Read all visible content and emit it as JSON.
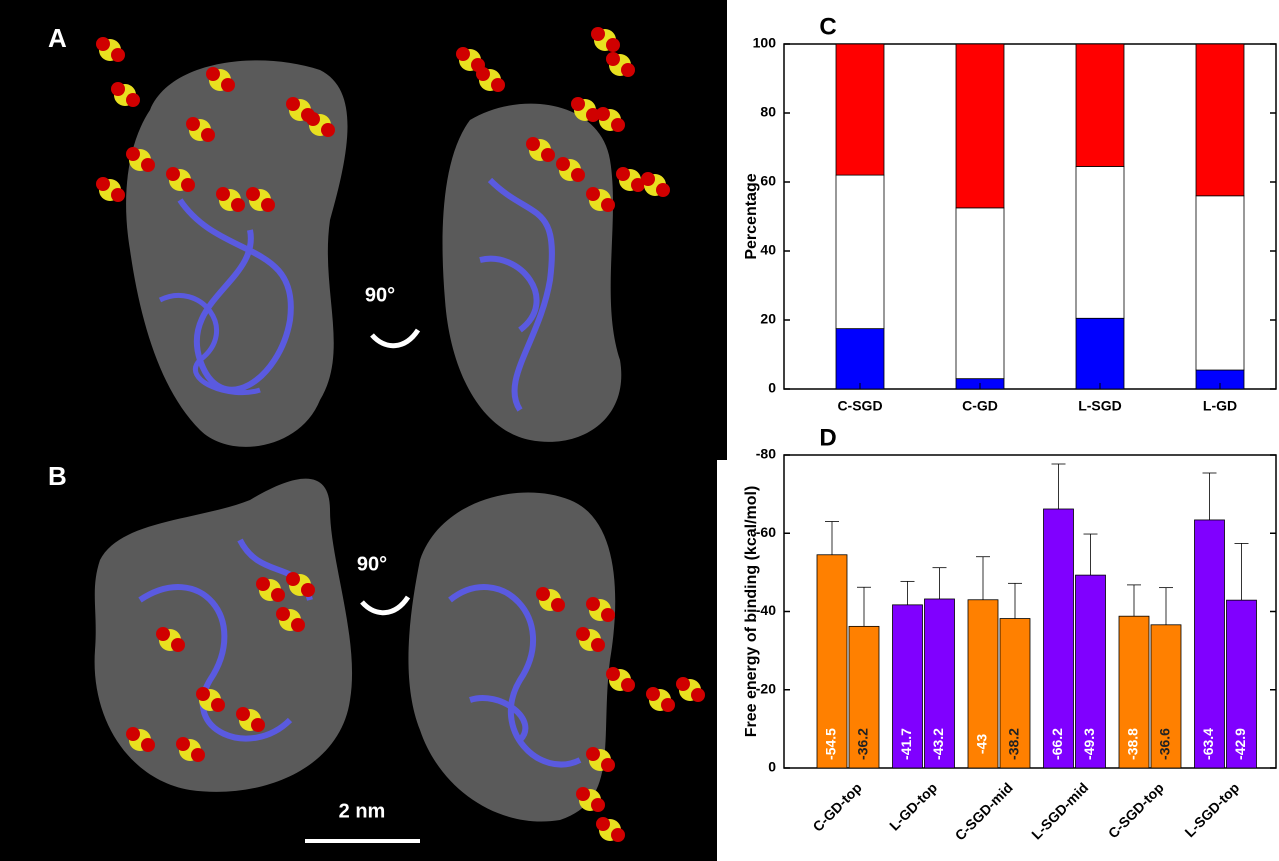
{
  "panel_a": {
    "label": "A",
    "rotation": "90°"
  },
  "panel_b": {
    "label": "B",
    "rotation": "90°",
    "scale_bar": "2 nm"
  },
  "chart_data": [
    {
      "type": "stacked_bar",
      "panel_label": "C",
      "ylabel": "Percentage",
      "categories": [
        "C-SGD",
        "C-GD",
        "L-SGD",
        "L-GD"
      ],
      "series": [
        {
          "color": "#0000ff",
          "values": [
            17.5,
            3,
            20.5,
            5.5
          ]
        },
        {
          "color": "#ffffff",
          "values": [
            44.5,
            49.5,
            44,
            50.5
          ]
        },
        {
          "color": "#ff0000",
          "values": [
            38,
            47.5,
            35.5,
            44
          ]
        }
      ],
      "ylim": [
        0,
        100
      ],
      "yticks": [
        0,
        20,
        40,
        60,
        80,
        100
      ]
    },
    {
      "type": "grouped_bar",
      "panel_label": "D",
      "ylabel": "Free energy of binding (kcal/mol)",
      "categories": [
        "C-GD-top",
        "L-GD-top",
        "C-SGD-mid",
        "L-SGD-mid",
        "C-SGD-top",
        "L-SGD-top"
      ],
      "colors": [
        "#ff8000",
        "#8000ff",
        "#ff8000",
        "#8000ff",
        "#ff8000",
        "#8000ff"
      ],
      "series": [
        {
          "values": [
            -54.5,
            -41.7,
            -43,
            -66.2,
            -38.8,
            -63.4
          ],
          "errors": [
            8.5,
            6,
            11,
            11.5,
            8,
            12
          ]
        },
        {
          "values": [
            -36.2,
            -43.2,
            -38.2,
            -49.3,
            -36.6,
            -42.9
          ],
          "errors": [
            10,
            8,
            9,
            10.5,
            9.5,
            14.5
          ]
        }
      ],
      "ylim": [
        0,
        -80
      ],
      "yticks": [
        0,
        -20,
        -40,
        -60,
        -80
      ]
    }
  ]
}
